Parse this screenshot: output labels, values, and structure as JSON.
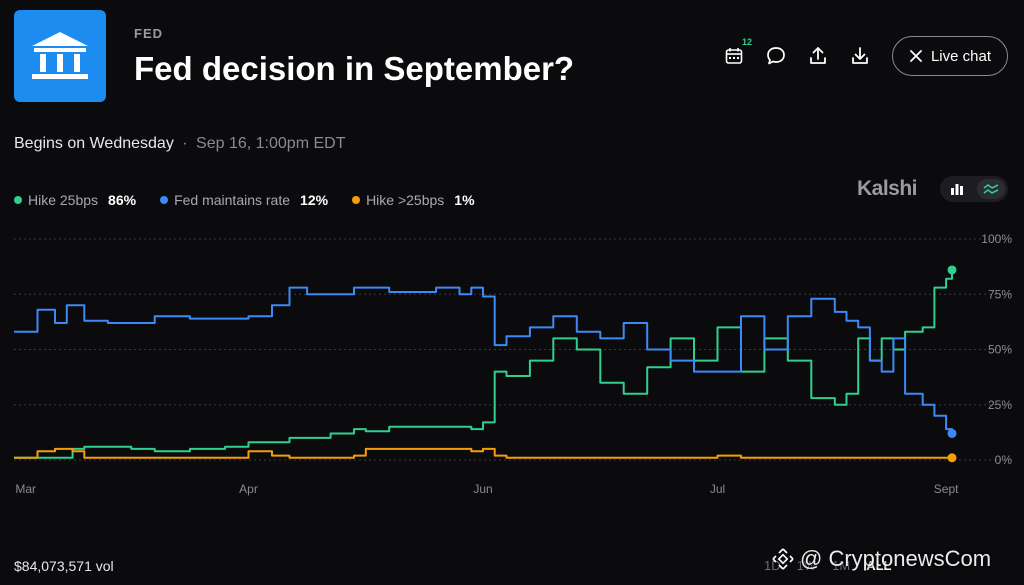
{
  "header": {
    "category": "FED",
    "title": "Fed decision in September?",
    "calendar_badge": "12",
    "live_chat_label": "Live chat",
    "icons": [
      "bank-icon",
      "calendar-icon",
      "comment-icon",
      "share-icon",
      "download-icon",
      "close-icon"
    ]
  },
  "event": {
    "begins_label": "Begins on Wednesday",
    "separator": "·",
    "date": "Sep 16, 1:00pm EDT"
  },
  "legend": [
    {
      "label": "Hike 25bps",
      "value": "86%",
      "color": "#2fcf8e"
    },
    {
      "label": "Fed maintains rate",
      "value": "12%",
      "color": "#3d8af7"
    },
    {
      "label": "Hike >25bps",
      "value": "1%",
      "color": "#f59e0b"
    }
  ],
  "brand": "Kalshi",
  "footer": {
    "volume": "$84,073,571 vol",
    "range_tabs": [
      "1D",
      "1W",
      "1M",
      "ALL"
    ],
    "active_range": "ALL"
  },
  "watermark": "@ CryptonewsCom",
  "chart_data": {
    "type": "line",
    "x": [
      0,
      0.2,
      0.35,
      0.45,
      0.5,
      0.6,
      0.8,
      1.0,
      1.2,
      1.5,
      1.8,
      2.0,
      2.2,
      2.35,
      2.5,
      2.7,
      2.9,
      3.0,
      3.2,
      3.4,
      3.6,
      3.8,
      3.9,
      4.0,
      4.1,
      4.2,
      4.4,
      4.6,
      4.8,
      5.0,
      5.2,
      5.4,
      5.6,
      5.8,
      6.0,
      6.2,
      6.4,
      6.6,
      6.8,
      7.0,
      7.1,
      7.2,
      7.3,
      7.4,
      7.5,
      7.6,
      7.75,
      7.85,
      7.95,
      8.0
    ],
    "x_ticks": [
      {
        "label": "Mar",
        "value": 0.1
      },
      {
        "label": "Apr",
        "value": 2.0
      },
      {
        "label": "Jun",
        "value": 4.0
      },
      {
        "label": "Jul",
        "value": 6.0
      },
      {
        "label": "Sept",
        "value": 7.95
      }
    ],
    "ylim": [
      0,
      100
    ],
    "y_ticks": [
      "0%",
      "25%",
      "50%",
      "75%",
      "100%"
    ],
    "grid": true,
    "series": [
      {
        "name": "Hike 25bps",
        "color": "#2fcf8e",
        "values": [
          1,
          1,
          1,
          1,
          5,
          6,
          6,
          5,
          4,
          5,
          6,
          8,
          8,
          10,
          10,
          12,
          14,
          13,
          15,
          15,
          15,
          15,
          14,
          17,
          40,
          38,
          45,
          55,
          50,
          35,
          30,
          42,
          55,
          45,
          60,
          40,
          55,
          45,
          28,
          25,
          30,
          55,
          45,
          55,
          50,
          58,
          60,
          78,
          82,
          86
        ]
      },
      {
        "name": "Fed maintains rate",
        "color": "#3d8af7",
        "values": [
          58,
          68,
          62,
          70,
          70,
          63,
          62,
          62,
          65,
          64,
          64,
          65,
          70,
          78,
          75,
          75,
          78,
          78,
          76,
          76,
          78,
          75,
          78,
          74,
          52,
          56,
          60,
          65,
          58,
          55,
          62,
          50,
          45,
          40,
          40,
          65,
          50,
          65,
          73,
          67,
          63,
          60,
          45,
          40,
          55,
          30,
          25,
          20,
          14,
          12
        ]
      },
      {
        "name": "Hike >25bps",
        "color": "#f59e0b",
        "values": [
          1,
          4,
          5,
          5,
          4,
          1,
          1,
          1,
          1,
          1,
          1,
          4,
          2,
          1,
          1,
          1,
          2,
          5,
          5,
          5,
          5,
          5,
          4,
          5,
          2,
          1,
          1,
          1,
          1,
          1,
          1,
          1,
          1,
          1,
          2,
          1,
          1,
          1,
          1,
          1,
          1,
          1,
          1,
          1,
          1,
          1,
          1,
          1,
          1,
          1
        ]
      }
    ]
  }
}
